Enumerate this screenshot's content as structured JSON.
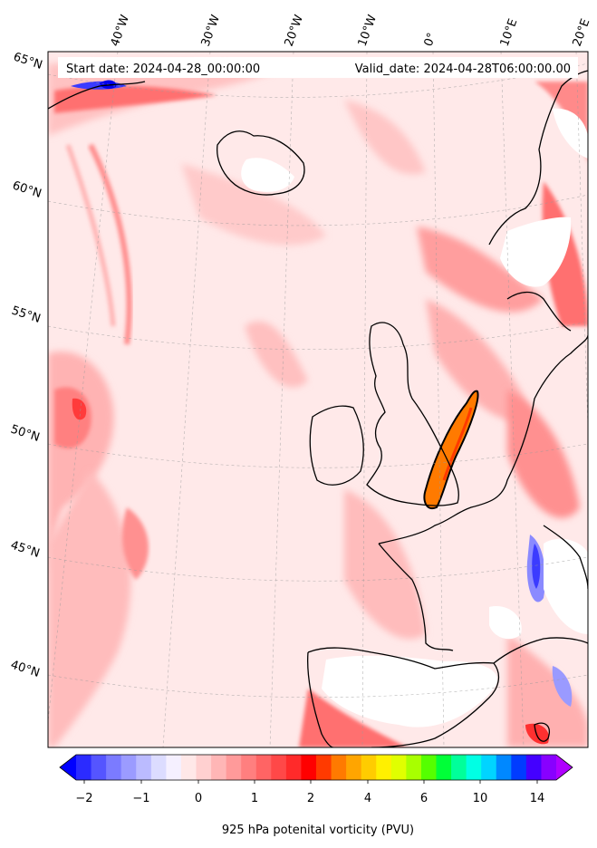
{
  "header": {
    "start_date": "Start date: 2024-04-28_00:00:00",
    "valid_date": "Valid_date: 2024-04-28T06:00:00.00"
  },
  "lon_labels": [
    "40°W",
    "30°W",
    "20°W",
    "10°W",
    "0°",
    "10°E",
    "20°E"
  ],
  "lat_labels": [
    "65°N",
    "60°N",
    "55°N",
    "50°N",
    "45°N",
    "40°N"
  ],
  "colorbar": {
    "label": "925 hPa potenital vorticity (PVU)",
    "tick_labels": [
      "−2",
      "−1",
      "0",
      "1",
      "2",
      "4",
      "6",
      "10",
      "14"
    ],
    "colors": [
      "#0000ff",
      "#2b2bff",
      "#5555ff",
      "#7b7bff",
      "#9b9bff",
      "#bbbbff",
      "#dcdcff",
      "#f5f0ff",
      "#ffe8e8",
      "#ffd0d0",
      "#ffb6b6",
      "#ff9a9a",
      "#ff7f7f",
      "#ff6464",
      "#ff4848",
      "#ff2a2a",
      "#ff0000",
      "#ff3a00",
      "#ff7a00",
      "#ffa500",
      "#ffcc00",
      "#fff000",
      "#e0ff00",
      "#a8ff00",
      "#55ff00",
      "#00ff38",
      "#00ff9a",
      "#00ffe4",
      "#00d4ff",
      "#0088ff",
      "#003cff",
      "#4400ff",
      "#8800ff",
      "#b000ff"
    ]
  },
  "map": {
    "ocean_fill": "#ffe6e6",
    "projection": "Lambert conformal"
  }
}
